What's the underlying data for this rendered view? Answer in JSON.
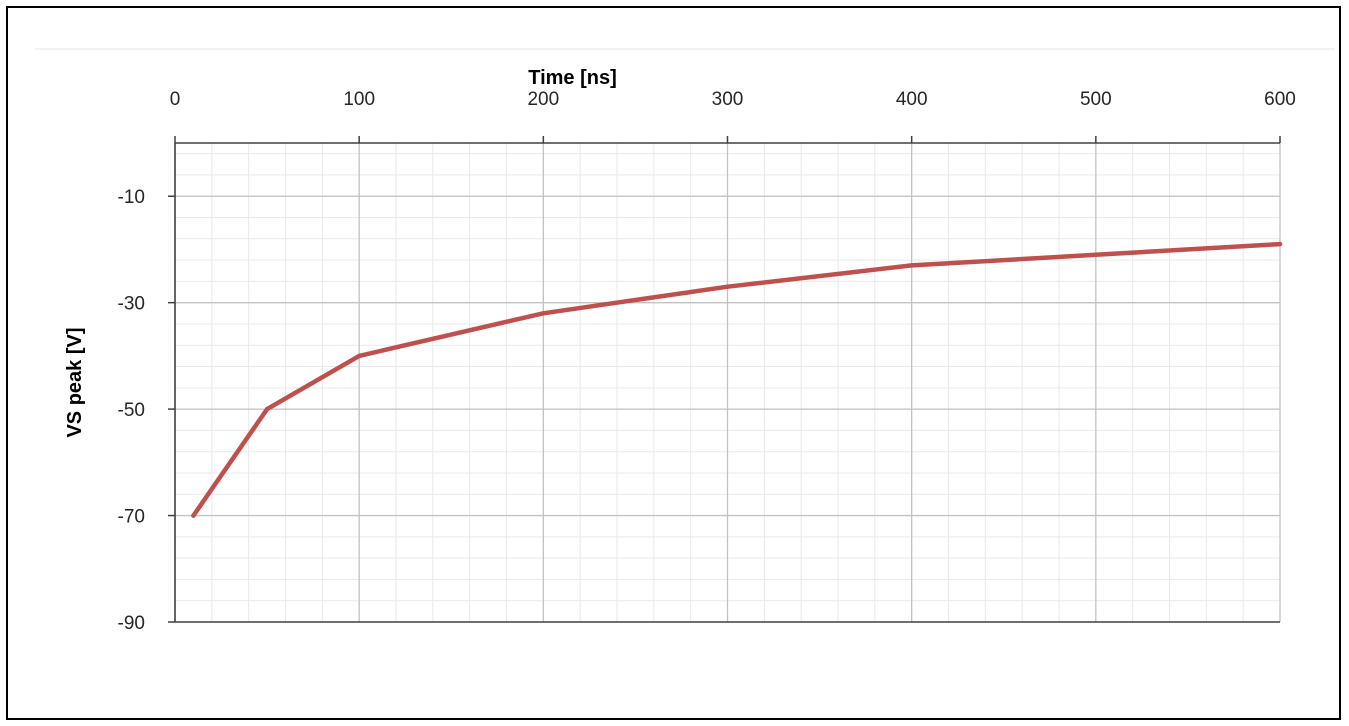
{
  "chart_data": {
    "type": "line",
    "title": "",
    "xlabel": "Time [ns]",
    "ylabel": "VS peak [V]",
    "x_axis_position": "top",
    "xlim": [
      0,
      600
    ],
    "ylim": [
      -90,
      0
    ],
    "x_ticks": [
      0,
      100,
      200,
      300,
      400,
      500,
      600
    ],
    "x_tick_labels": [
      "0",
      "100",
      "200",
      "300",
      "400",
      "500",
      "600"
    ],
    "y_ticks": [
      -10,
      -30,
      -50,
      -70,
      -90
    ],
    "y_tick_labels": [
      "-10",
      "-30",
      "-50",
      "-70",
      "-90"
    ],
    "x_minor_step": 20,
    "y_minor_step": 4,
    "grid": true,
    "legend": "none",
    "series": [
      {
        "color": "#c0504d",
        "x": [
          10,
          50,
          100,
          200,
          300,
          400,
          500,
          600
        ],
        "y": [
          -70,
          -50,
          -40,
          -32,
          -27,
          -23,
          -21,
          -19
        ]
      }
    ]
  }
}
